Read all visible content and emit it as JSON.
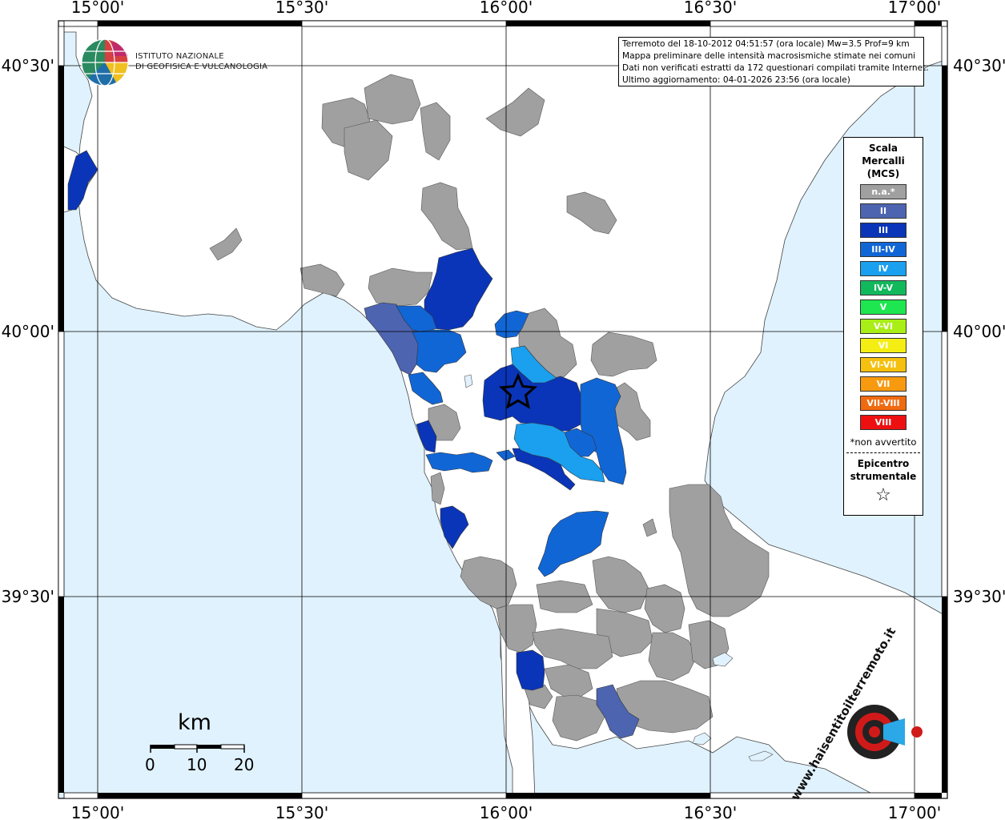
{
  "axes": {
    "lon_labels": [
      "15°00'",
      "15°30'",
      "16°00'",
      "16°30'",
      "17°00'"
    ],
    "lat_labels": [
      "40°30'",
      "40°00'",
      "39°30'"
    ]
  },
  "info": {
    "line1": "Terremoto del 18-10-2012 04:51:57 (ora locale) Mw=3.5 Prof=9 km",
    "line2": "Mappa preliminare delle intensità macrosismiche stimate nei comuni",
    "line3": "Dati non verificati estratti da 172 questionari compilati tramite Internet.",
    "line4": "Ultimo aggiornamento: 04-01-2026 23:56 (ora locale)"
  },
  "logo": {
    "line1": "ISTITUTO NAZIONALE",
    "line2": "DI GEOFISICA E VULCANOLOGIA"
  },
  "legend": {
    "title_lines": [
      "Scala",
      "Mercalli",
      "(MCS)"
    ],
    "items": [
      {
        "label": "n.a.*",
        "color": "#a0a0a0"
      },
      {
        "label": "II",
        "color": "#4d64b0"
      },
      {
        "label": "III",
        "color": "#0a35b8"
      },
      {
        "label": "III-IV",
        "color": "#1166d6"
      },
      {
        "label": "IV",
        "color": "#1aa0ee"
      },
      {
        "label": "IV-V",
        "color": "#12b85c"
      },
      {
        "label": "V",
        "color": "#1ee650"
      },
      {
        "label": "V-VI",
        "color": "#aaee18"
      },
      {
        "label": "VI",
        "color": "#f5ee12"
      },
      {
        "label": "VI-VII",
        "color": "#f5c010"
      },
      {
        "label": "VII",
        "color": "#f79a10"
      },
      {
        "label": "VII-VIII",
        "color": "#f06a10"
      },
      {
        "label": "VIII",
        "color": "#ee1010"
      }
    ],
    "note": "*non avvertito",
    "epicenter_lines": [
      "Epicentro",
      "strumentale"
    ],
    "star": "☆"
  },
  "scale_bar": {
    "unit": "km",
    "ticks": [
      "0",
      "10",
      "20"
    ]
  },
  "watermark": {
    "text": "www.haisentitoilterremoto.it"
  },
  "colors": {
    "sea": "#e0f2fd",
    "land": "#ffffff",
    "na": "#a0a0a0",
    "II": "#4d64b0",
    "III": "#0a35b8",
    "III-IV": "#1166d6",
    "IV": "#1aa0ee"
  }
}
